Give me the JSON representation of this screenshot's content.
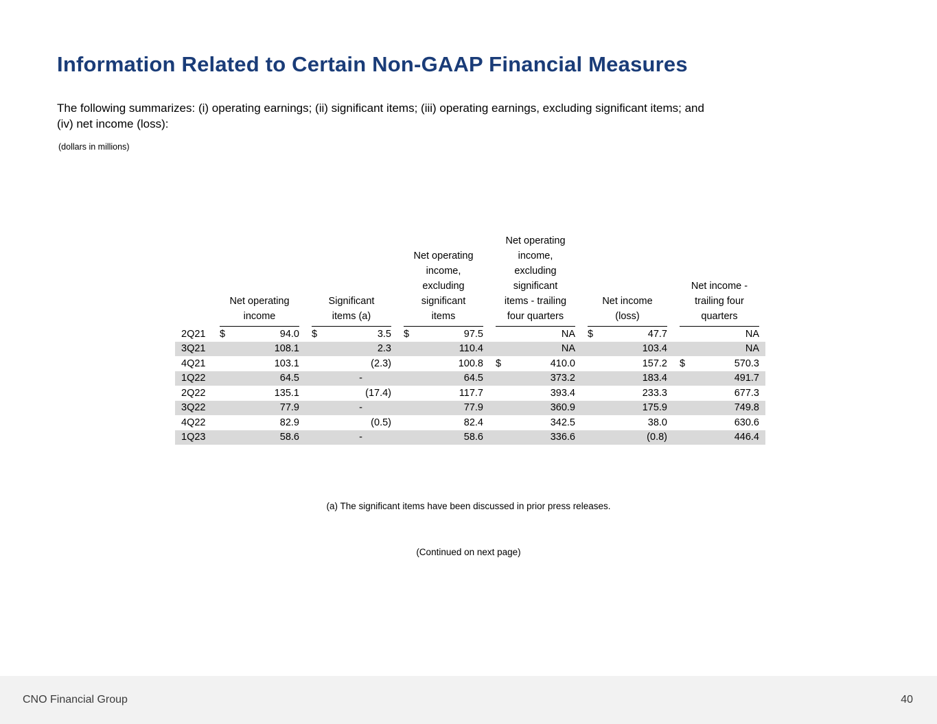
{
  "slide": {
    "title": "Information Related to Certain Non-GAAP Financial Measures",
    "intro": "The following summarizes: (i) operating earnings; (ii) significant items; (iii) operating earnings, excluding significant items; and\n(iv) net income (loss):",
    "units_note": "(dollars in millions)",
    "footnote": "(a) The significant items have been discussed in prior press releases.",
    "continued": "(Continued on next page)"
  },
  "colors": {
    "title_text": "#1A3C78",
    "row_shade": "#D9D9D9",
    "footer_bar": "#F2F2F2"
  },
  "table": {
    "headers": [
      "Net operating\nincome",
      "Significant\nitems (a)",
      "Net operating\nincome,\nexcluding\nsignificant\nitems",
      "Net operating\nincome,\nexcluding\nsignificant\nitems - trailing\nfour quarters",
      "Net income\n(loss)",
      "Net income -\ntrailing four\nquarters"
    ],
    "rows": [
      {
        "quarter": "2Q21",
        "cells": [
          {
            "d": "$",
            "v": "94.0"
          },
          {
            "d": "$",
            "v": "3.5"
          },
          {
            "d": "$",
            "v": "97.5"
          },
          {
            "d": "",
            "v": "NA"
          },
          {
            "d": "$",
            "v": "47.7"
          },
          {
            "d": "",
            "v": "NA"
          }
        ]
      },
      {
        "quarter": "3Q21",
        "cells": [
          {
            "d": "",
            "v": "108.1"
          },
          {
            "d": "",
            "v": "2.3"
          },
          {
            "d": "",
            "v": "110.4"
          },
          {
            "d": "",
            "v": "NA"
          },
          {
            "d": "",
            "v": "103.4"
          },
          {
            "d": "",
            "v": "NA"
          }
        ]
      },
      {
        "quarter": "4Q21",
        "cells": [
          {
            "d": "",
            "v": "103.1"
          },
          {
            "d": "",
            "v": "(2.3)"
          },
          {
            "d": "",
            "v": "100.8"
          },
          {
            "d": "$",
            "v": "410.0"
          },
          {
            "d": "",
            "v": "157.2"
          },
          {
            "d": "$",
            "v": "570.3"
          }
        ]
      },
      {
        "quarter": "1Q22",
        "cells": [
          {
            "d": "",
            "v": "64.5"
          },
          {
            "d": "",
            "v": "-"
          },
          {
            "d": "",
            "v": "64.5"
          },
          {
            "d": "",
            "v": "373.2"
          },
          {
            "d": "",
            "v": "183.4"
          },
          {
            "d": "",
            "v": "491.7"
          }
        ]
      },
      {
        "quarter": "2Q22",
        "cells": [
          {
            "d": "",
            "v": "135.1"
          },
          {
            "d": "",
            "v": "(17.4)"
          },
          {
            "d": "",
            "v": "117.7"
          },
          {
            "d": "",
            "v": "393.4"
          },
          {
            "d": "",
            "v": "233.3"
          },
          {
            "d": "",
            "v": "677.3"
          }
        ]
      },
      {
        "quarter": "3Q22",
        "cells": [
          {
            "d": "",
            "v": "77.9"
          },
          {
            "d": "",
            "v": "-"
          },
          {
            "d": "",
            "v": "77.9"
          },
          {
            "d": "",
            "v": "360.9"
          },
          {
            "d": "",
            "v": "175.9"
          },
          {
            "d": "",
            "v": "749.8"
          }
        ]
      },
      {
        "quarter": "4Q22",
        "cells": [
          {
            "d": "",
            "v": "82.9"
          },
          {
            "d": "",
            "v": "(0.5)"
          },
          {
            "d": "",
            "v": "82.4"
          },
          {
            "d": "",
            "v": "342.5"
          },
          {
            "d": "",
            "v": "38.0"
          },
          {
            "d": "",
            "v": "630.6"
          }
        ]
      },
      {
        "quarter": "1Q23",
        "cells": [
          {
            "d": "",
            "v": "58.6"
          },
          {
            "d": "",
            "v": "-"
          },
          {
            "d": "",
            "v": "58.6"
          },
          {
            "d": "",
            "v": "336.6"
          },
          {
            "d": "",
            "v": "(0.8)"
          },
          {
            "d": "",
            "v": "446.4"
          }
        ]
      }
    ]
  },
  "footer": {
    "company": "CNO Financial Group",
    "page_number": "40"
  }
}
